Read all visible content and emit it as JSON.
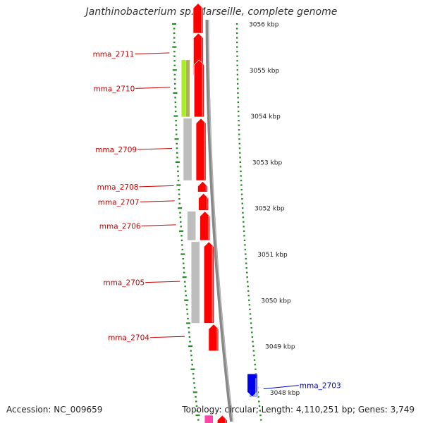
{
  "title": "Janthinobacterium sp. Marseille, complete genome",
  "footer": {
    "accession": "Accession: NC_009659",
    "summary": "Topology: circular; Length: 4,110,251 bp; Genes: 3,749"
  },
  "colors": {
    "forward_gene": "#ff0000",
    "reverse_gene": "#0000ee",
    "cog_lime": "#aaee22",
    "cog_olive": "#aab060",
    "cog_grey": "#bdbdbd",
    "cog_blue": "#8899ff",
    "cog_pink": "#ff44aa",
    "label_red": "#cc0000",
    "label_blue": "#0000cc",
    "scale_green": "#228822",
    "backbone": "#888888"
  },
  "chart_data": {
    "type": "genome-map",
    "unit": "kbp",
    "view_range_kbp": [
      3047.3,
      3056.4
    ],
    "scale_ticks": [
      {
        "kbp": 3056,
        "label": "3056 kbp"
      },
      {
        "kbp": 3055,
        "label": "3055 kbp"
      },
      {
        "kbp": 3054,
        "label": "3054 kbp"
      },
      {
        "kbp": 3053,
        "label": "3053 kbp"
      },
      {
        "kbp": 3052,
        "label": "3052 kbp"
      },
      {
        "kbp": 3051,
        "label": "3051 kbp"
      },
      {
        "kbp": 3050,
        "label": "3050 kbp"
      },
      {
        "kbp": 3049,
        "label": "3049 kbp"
      },
      {
        "kbp": 3048,
        "label": "3048 kbp"
      }
    ],
    "genes": [
      {
        "name": "",
        "strand": "+",
        "start_kbp": 3055.8,
        "end_kbp": 3056.45,
        "cog": []
      },
      {
        "name": "mma_2711",
        "strand": "+",
        "start_kbp": 3054.9,
        "end_kbp": 3055.8,
        "cog": []
      },
      {
        "name": "mma_2710",
        "strand": "+",
        "start_kbp": 3053.98,
        "end_kbp": 3055.22,
        "cog": [
          "lime",
          "olive"
        ]
      },
      {
        "name": "mma_2709",
        "strand": "+",
        "start_kbp": 3052.6,
        "end_kbp": 3053.95,
        "cog": [
          "grey"
        ]
      },
      {
        "name": "mma_2708",
        "strand": "+",
        "start_kbp": 3052.35,
        "end_kbp": 3052.58,
        "cog": []
      },
      {
        "name": "mma_2707",
        "strand": "+",
        "start_kbp": 3051.95,
        "end_kbp": 3052.32,
        "cog": []
      },
      {
        "name": "mma_2706",
        "strand": "+",
        "start_kbp": 3051.3,
        "end_kbp": 3051.93,
        "cog": [
          "grey"
        ]
      },
      {
        "name": "mma_2705",
        "strand": "+",
        "start_kbp": 3049.5,
        "end_kbp": 3051.27,
        "cog": [
          "grey"
        ]
      },
      {
        "name": "mma_2704",
        "strand": "+",
        "start_kbp": 3048.9,
        "end_kbp": 3049.48,
        "cog": []
      },
      {
        "name": "mma_2703",
        "strand": "-",
        "start_kbp": 3047.9,
        "end_kbp": 3048.4,
        "cog": [
          "blue"
        ]
      },
      {
        "name": "",
        "strand": "+",
        "start_kbp": 3047.3,
        "end_kbp": 3047.5,
        "cog": [
          "pink"
        ]
      }
    ]
  }
}
